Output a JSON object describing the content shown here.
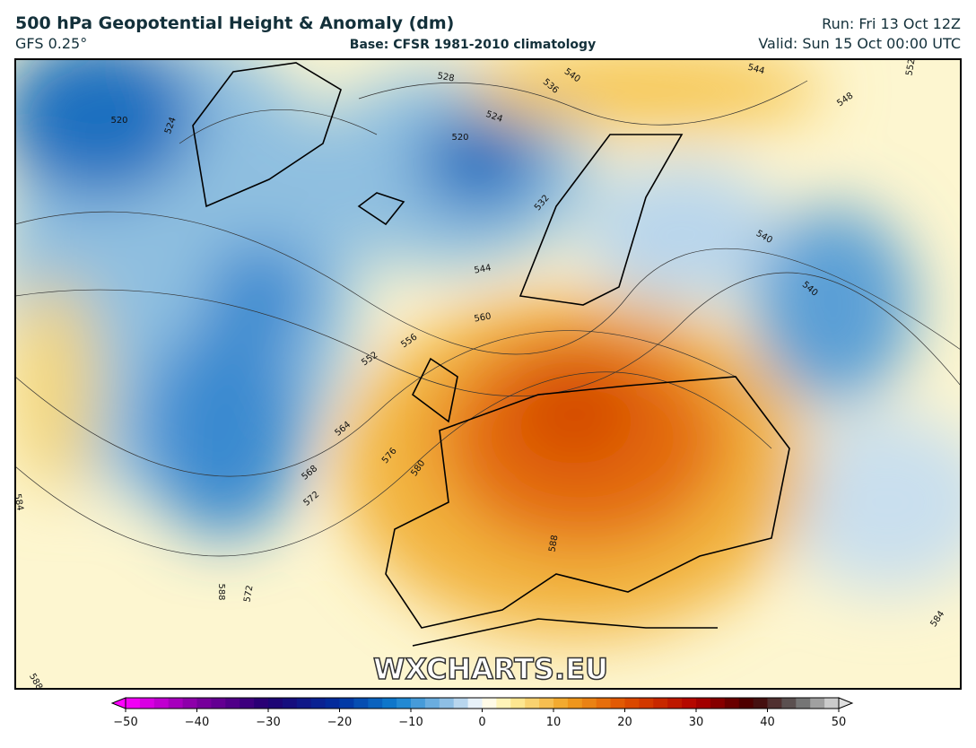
{
  "header": {
    "title": "500 hPa Geopotential Height & Anomaly (dm)",
    "model": "GFS 0.25°",
    "base": "Base: CFSR 1981-2010 climatology",
    "run": "Run: Fri 13 Oct 12Z",
    "valid": "Valid: Sun 15 Oct 00:00 UTC"
  },
  "map": {
    "watermark": "WXCHARTS.EU",
    "contour_labels": [
      520,
      524,
      528,
      524,
      520,
      536,
      540,
      544,
      548,
      552,
      532,
      540,
      540,
      544,
      560,
      556,
      552,
      564,
      568,
      572,
      576,
      580,
      588,
      572,
      588,
      584,
      584,
      588
    ]
  },
  "colorbar": {
    "ticks": [
      {
        "value": -50,
        "label": "−50"
      },
      {
        "value": -40,
        "label": "−40"
      },
      {
        "value": -30,
        "label": "−30"
      },
      {
        "value": -20,
        "label": "−20"
      },
      {
        "value": -10,
        "label": "−10"
      },
      0,
      10,
      20,
      30,
      40,
      50
    ]
  }
}
